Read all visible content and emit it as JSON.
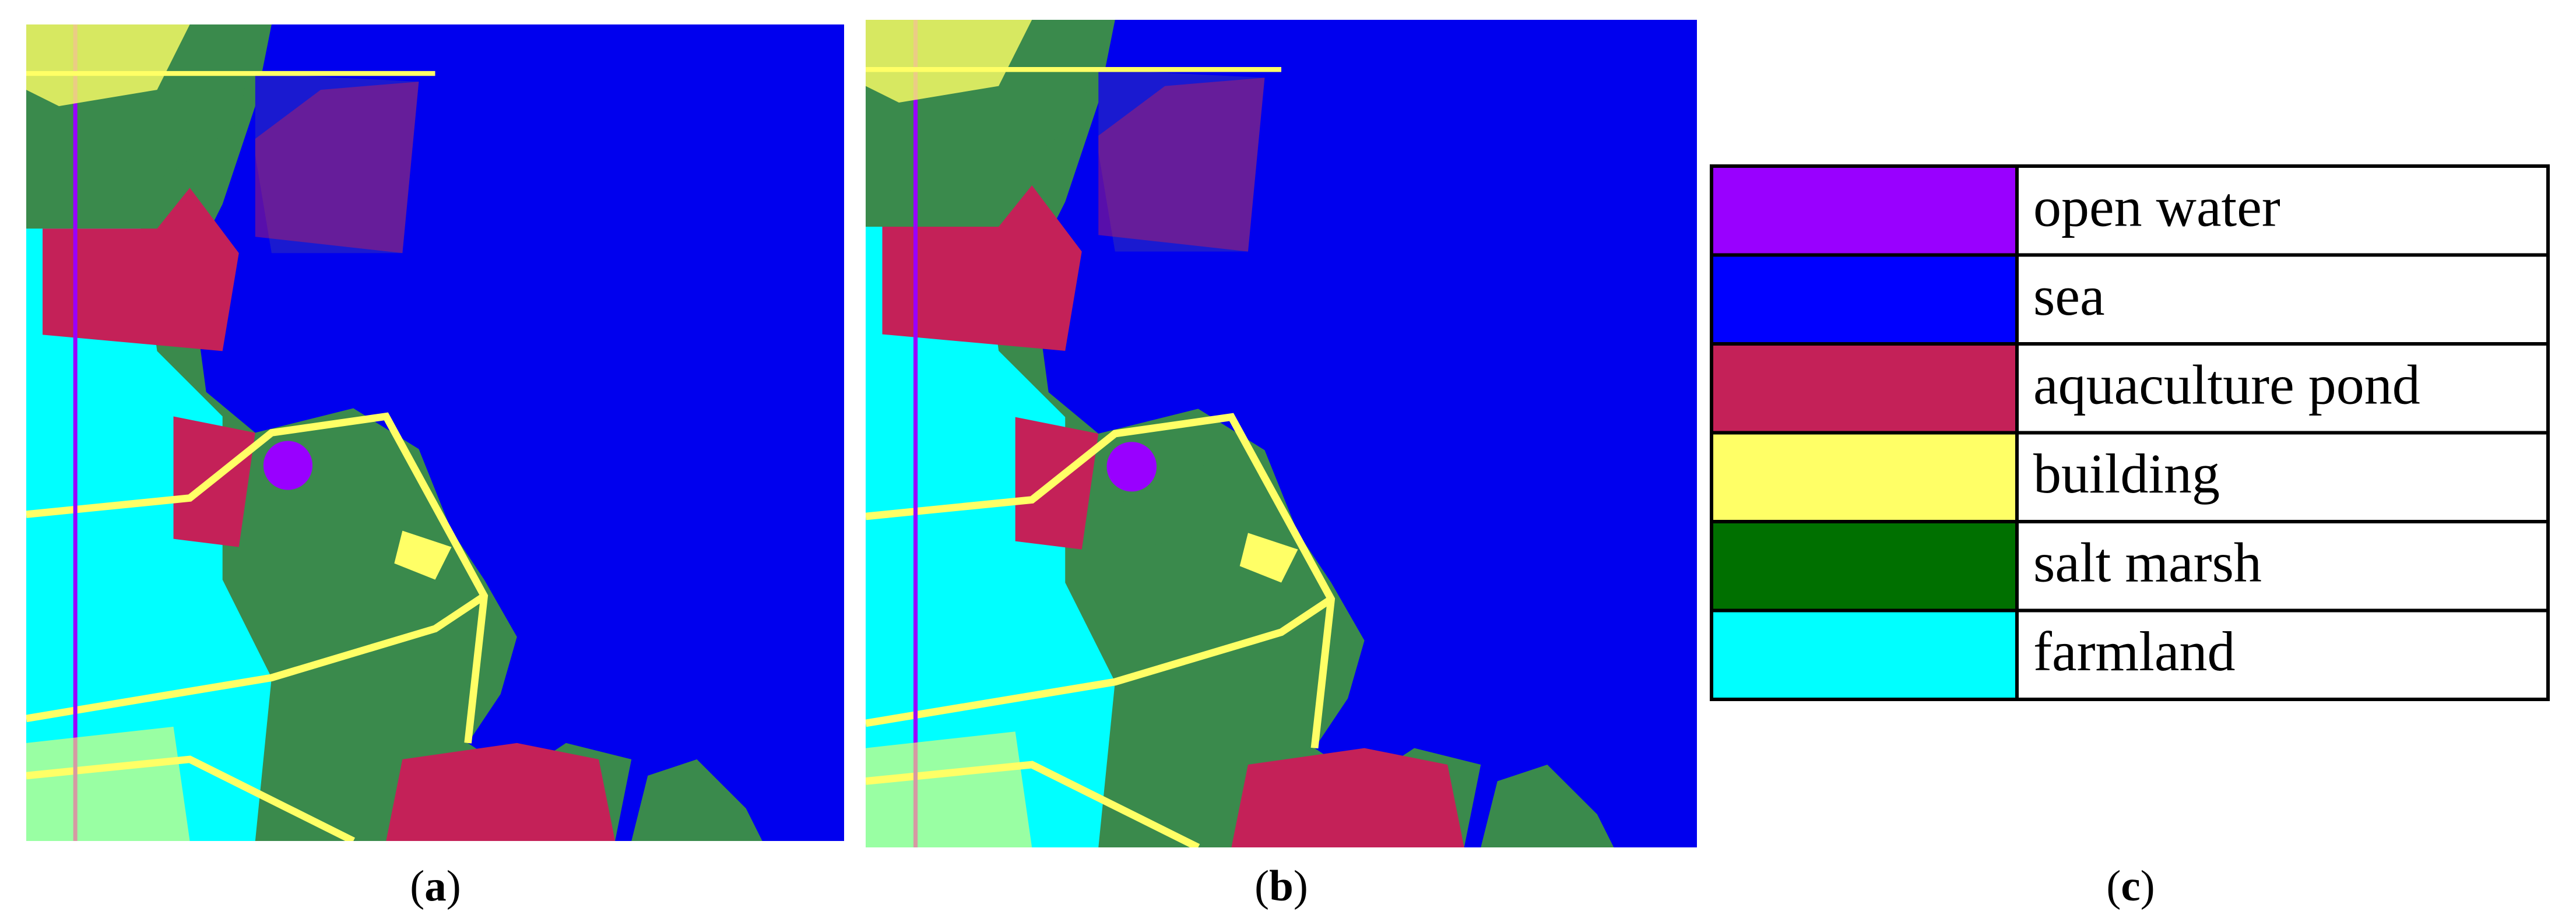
{
  "captions": [
    [
      "(",
      "a",
      ")"
    ],
    [
      "(",
      "b",
      ")"
    ],
    [
      "(",
      "c",
      ")"
    ]
  ],
  "legend": [
    {
      "label": "open water",
      "color": "#9900ff"
    },
    {
      "label": "sea",
      "color": "#0000ff"
    },
    {
      "label": "aquaculture pond",
      "color": "#c42158"
    },
    {
      "label": "building",
      "color": "#ffff66"
    },
    {
      "label": "salt marsh",
      "color": "#007000"
    },
    {
      "label": "farmland",
      "color": "#00ffff"
    }
  ]
}
